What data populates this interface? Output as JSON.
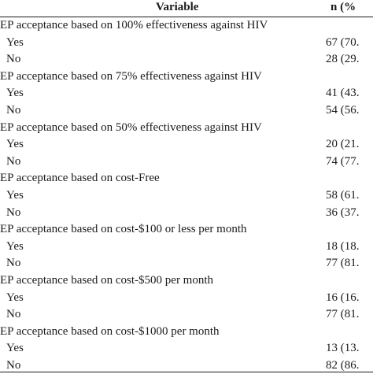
{
  "header": {
    "variable": "Variable",
    "n": "n (%"
  },
  "groups": [
    {
      "title": "EP acceptance based on 100% effectiveness against HIV",
      "rows": [
        {
          "label": "Yes",
          "value": "67 (70."
        },
        {
          "label": "No",
          "value": "28 (29."
        }
      ]
    },
    {
      "title": "EP acceptance based on 75% effectiveness against HIV",
      "rows": [
        {
          "label": "Yes",
          "value": "41 (43."
        },
        {
          "label": "No",
          "value": "54 (56."
        }
      ]
    },
    {
      "title": "EP acceptance based on 50% effectiveness against HIV",
      "rows": [
        {
          "label": "Yes",
          "value": "20 (21."
        },
        {
          "label": "No",
          "value": "74 (77."
        }
      ]
    },
    {
      "title": "EP acceptance based on cost-Free",
      "rows": [
        {
          "label": "Yes",
          "value": "58 (61."
        },
        {
          "label": "No",
          "value": "36 (37."
        }
      ]
    },
    {
      "title": "EP acceptance based on cost-$100 or less per month",
      "rows": [
        {
          "label": "Yes",
          "value": "18 (18."
        },
        {
          "label": "No",
          "value": "77 (81."
        }
      ]
    },
    {
      "title": "EP acceptance based on cost-$500 per month",
      "rows": [
        {
          "label": "Yes",
          "value": "16 (16."
        },
        {
          "label": "No",
          "value": "77 (81."
        }
      ]
    },
    {
      "title": "EP acceptance based on cost-$1000 per month",
      "rows": [
        {
          "label": "Yes",
          "value": "13 (13."
        },
        {
          "label": "No",
          "value": "82 (86."
        }
      ]
    }
  ]
}
